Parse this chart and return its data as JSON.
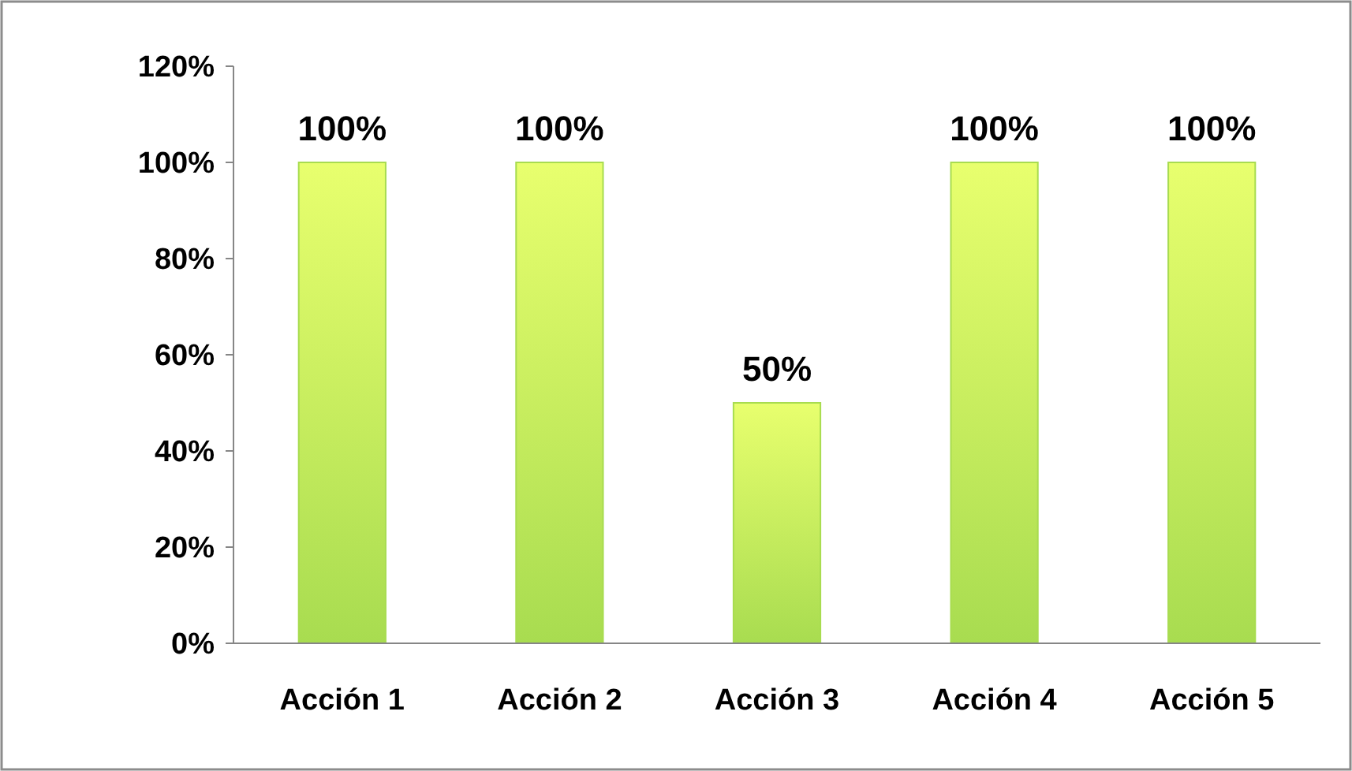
{
  "chart_data": {
    "type": "bar",
    "categories": [
      "Acción 1",
      "Acción 2",
      "Acción 3",
      "Acción 4",
      "Acción 5"
    ],
    "values": [
      100,
      100,
      50,
      100,
      100
    ],
    "value_labels": [
      "100%",
      "100%",
      "50%",
      "100%",
      "100%"
    ],
    "color": "#a8dc50",
    "ylim": [
      0,
      120
    ],
    "yticks": [
      {
        "value": 0,
        "label": "0%"
      },
      {
        "value": 20,
        "label": "20%"
      },
      {
        "value": 40,
        "label": "40%"
      },
      {
        "value": 60,
        "label": "60%"
      },
      {
        "value": 80,
        "label": "80%"
      },
      {
        "value": 100,
        "label": "100%"
      },
      {
        "value": 120,
        "label": "120%"
      }
    ],
    "grid": false
  }
}
